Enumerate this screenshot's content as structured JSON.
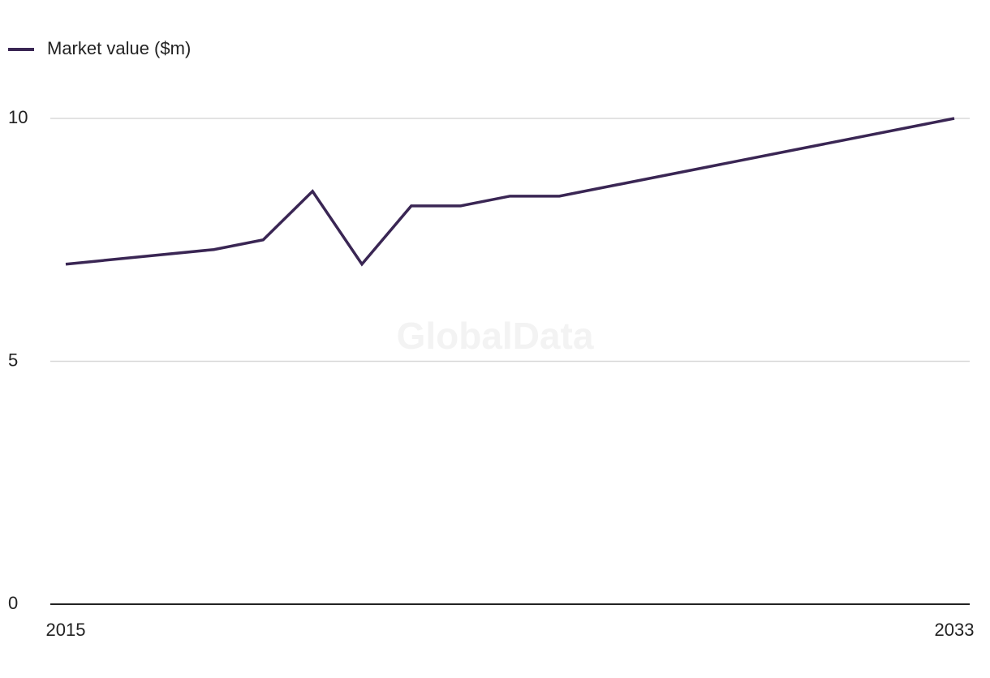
{
  "chart_data": {
    "type": "line",
    "watermark": "GlobalData",
    "x": [
      2015,
      2018,
      2019,
      2020,
      2021,
      2022,
      2023,
      2024,
      2025,
      2033
    ],
    "series": [
      {
        "name": "Market value ($m)",
        "color": "#3a2654",
        "values": [
          7.0,
          7.3,
          7.5,
          8.5,
          7.0,
          8.2,
          8.2,
          8.4,
          8.4,
          10.0
        ]
      }
    ],
    "xlim": [
      2015,
      2033
    ],
    "xticks": [
      2015,
      2033
    ],
    "ylim": [
      0,
      10
    ],
    "yticks": [
      0,
      5,
      10
    ],
    "grid": true,
    "legend": "top-left"
  }
}
